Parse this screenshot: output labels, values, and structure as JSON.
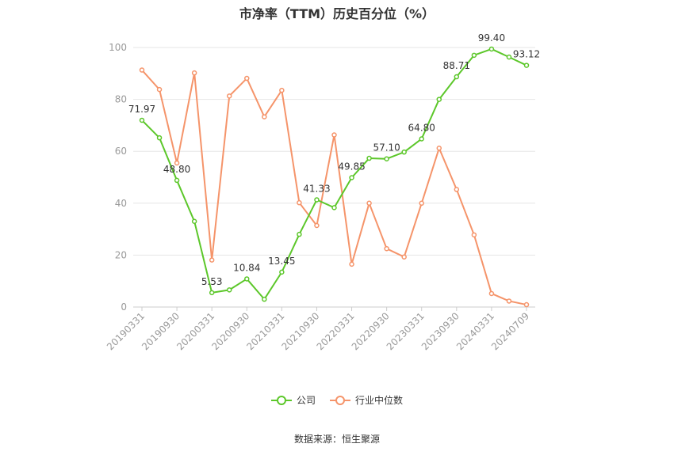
{
  "chart_data": {
    "type": "line",
    "title": "市净率（TTM）历史百分位（%）",
    "xlabel": "",
    "ylabel": "",
    "ylim": [
      0,
      100
    ],
    "yticks": [
      0,
      20,
      40,
      60,
      80,
      100
    ],
    "grid": true,
    "legend_position": "bottom",
    "x": [
      "20190331",
      "20190630",
      "20190930",
      "20191231",
      "20200331",
      "20200630",
      "20200930",
      "20201231",
      "20210331",
      "20210630",
      "20210930",
      "20211231",
      "20220331",
      "20220630",
      "20220930",
      "20221231",
      "20230331",
      "20230630",
      "20230930",
      "20231231",
      "20240331",
      "20240630",
      "20240709"
    ],
    "xtick_labels": [
      "20190331",
      "20190930",
      "20200331",
      "20200930",
      "20210331",
      "20210930",
      "20220331",
      "20220930",
      "20230331",
      "20230930",
      "20240331",
      "20240709"
    ],
    "series": [
      {
        "name": "公司",
        "color": "#5cc72a",
        "values": [
          71.97,
          65.2,
          48.8,
          33.0,
          5.53,
          6.6,
          10.84,
          3.0,
          13.45,
          28.0,
          41.33,
          38.3,
          49.85,
          57.3,
          57.1,
          59.7,
          64.8,
          80.0,
          88.71,
          97.0,
          99.4,
          96.3,
          93.12
        ],
        "labels": [
          "71.97",
          null,
          "48.80",
          null,
          "5.53",
          null,
          "10.84",
          null,
          "13.45",
          null,
          "41.33",
          null,
          "49.85",
          null,
          "57.10",
          null,
          "64.80",
          null,
          "88.71",
          null,
          "99.40",
          null,
          "93.12"
        ]
      },
      {
        "name": "行业中位数",
        "color": "#f5946a",
        "values": [
          91.3,
          83.8,
          55.5,
          90.2,
          18.1,
          81.3,
          88.1,
          73.3,
          83.5,
          40.2,
          31.4,
          66.3,
          16.5,
          40.0,
          22.5,
          19.3,
          40.0,
          61.2,
          45.3,
          27.8,
          5.2,
          2.3,
          0.9
        ]
      }
    ]
  },
  "source_text": "数据来源：恒生聚源"
}
